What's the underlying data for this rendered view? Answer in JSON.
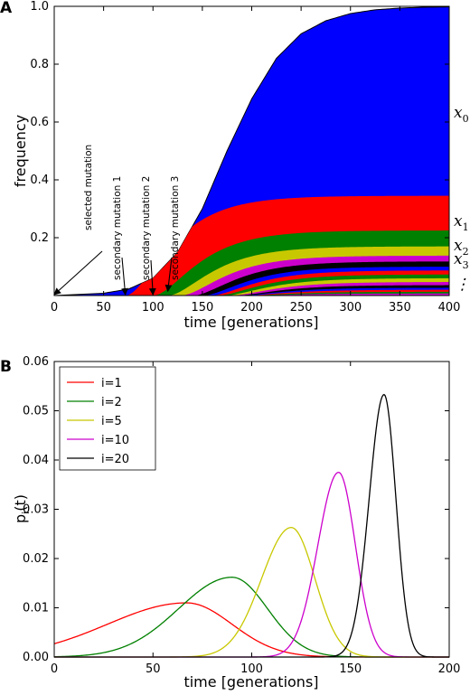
{
  "chart_data": [
    {
      "panel_label": "A",
      "type": "area",
      "xlabel": "time [generations]",
      "ylabel": "frequency",
      "xlim": [
        0,
        400
      ],
      "ylim": [
        0,
        1.0
      ],
      "xticks": [
        "0",
        "50",
        "100",
        "150",
        "200",
        "250",
        "300",
        "350",
        "400"
      ],
      "yticks": [
        "0.2",
        "0.4",
        "0.6",
        "0.8",
        "1.0"
      ],
      "total_curve": {
        "x": [
          0,
          50,
          75,
          100,
          125,
          150,
          175,
          200,
          225,
          250,
          275,
          300,
          325,
          350,
          375,
          400
        ],
        "y": [
          0.0,
          0.008,
          0.022,
          0.06,
          0.15,
          0.3,
          0.5,
          0.68,
          0.82,
          0.905,
          0.95,
          0.975,
          0.988,
          0.994,
          0.997,
          0.998
        ]
      },
      "layers": [
        {
          "name": "x1",
          "color": "#ff0000",
          "start": 72,
          "final": 0.345
        },
        {
          "name": "x2",
          "color": "#008000",
          "start": 100,
          "final": 0.225
        },
        {
          "name": "x3",
          "color": "#c8c800",
          "start": 115,
          "final": 0.17
        },
        {
          "name": "",
          "color": "#cc00cc",
          "start": 128,
          "final": 0.138
        },
        {
          "name": "",
          "color": "#000000",
          "start": 140,
          "final": 0.118
        },
        {
          "name": "",
          "color": "#0000ff",
          "start": 150,
          "final": 0.1
        },
        {
          "name": "",
          "color": "#ff0000",
          "start": 158,
          "final": 0.087
        },
        {
          "name": "",
          "color": "#008000",
          "start": 165,
          "final": 0.073
        },
        {
          "name": "",
          "color": "#c8c800",
          "start": 172,
          "final": 0.06
        },
        {
          "name": "",
          "color": "#cc00cc",
          "start": 178,
          "final": 0.047
        },
        {
          "name": "",
          "color": "#000000",
          "start": 183,
          "final": 0.036
        },
        {
          "name": "",
          "color": "#0000ff",
          "start": 187,
          "final": 0.027
        },
        {
          "name": "",
          "color": "#ff0000",
          "start": 191,
          "final": 0.02
        },
        {
          "name": "",
          "color": "#008000",
          "start": 195,
          "final": 0.013
        },
        {
          "name": "",
          "color": "#cc00cc",
          "start": 198,
          "final": 0.007
        }
      ],
      "base_color": "#0000ff",
      "annotations": [
        {
          "text": "selected mutation",
          "x": 0
        },
        {
          "text": "secondary mutation 1",
          "x": 72
        },
        {
          "text": "secondary mutation 2",
          "x": 100
        },
        {
          "text": "secondary mutation 3",
          "x": 115
        }
      ],
      "right_labels": [
        "x",
        "0",
        "x",
        "1",
        "x",
        "2",
        "x",
        "3",
        "⋮"
      ]
    },
    {
      "panel_label": "B",
      "type": "line",
      "xlabel": "time [generations]",
      "ylabel": "p",
      "ylabel_sub": "i",
      "ylabel_tail": "(t)",
      "xlim": [
        0,
        200
      ],
      "ylim": [
        0,
        0.06
      ],
      "xticks": [
        "0",
        "50",
        "100",
        "150",
        "200"
      ],
      "yticks": [
        "0.00",
        "0.01",
        "0.02",
        "0.03",
        "0.04",
        "0.05",
        "0.06"
      ],
      "legend_position": "top-left",
      "series": [
        {
          "name": "i=1",
          "color": "#ff0000",
          "peak_x": 67,
          "peak_y": 0.011,
          "sigma_left": 40,
          "sigma_right": 23
        },
        {
          "name": "i=2",
          "color": "#008000",
          "peak_x": 90,
          "peak_y": 0.0162,
          "sigma_left": 27,
          "sigma_right": 18
        },
        {
          "name": "i=5",
          "color": "#c8c800",
          "peak_x": 120,
          "peak_y": 0.0263,
          "sigma_left": 15,
          "sigma_right": 12
        },
        {
          "name": "i=10",
          "color": "#cc00cc",
          "peak_x": 144,
          "peak_y": 0.0375,
          "sigma_left": 10.5,
          "sigma_right": 8.5
        },
        {
          "name": "i=20",
          "color": "#000000",
          "peak_x": 167,
          "peak_y": 0.0533,
          "sigma_left": 7.5,
          "sigma_right": 6
        }
      ]
    }
  ]
}
